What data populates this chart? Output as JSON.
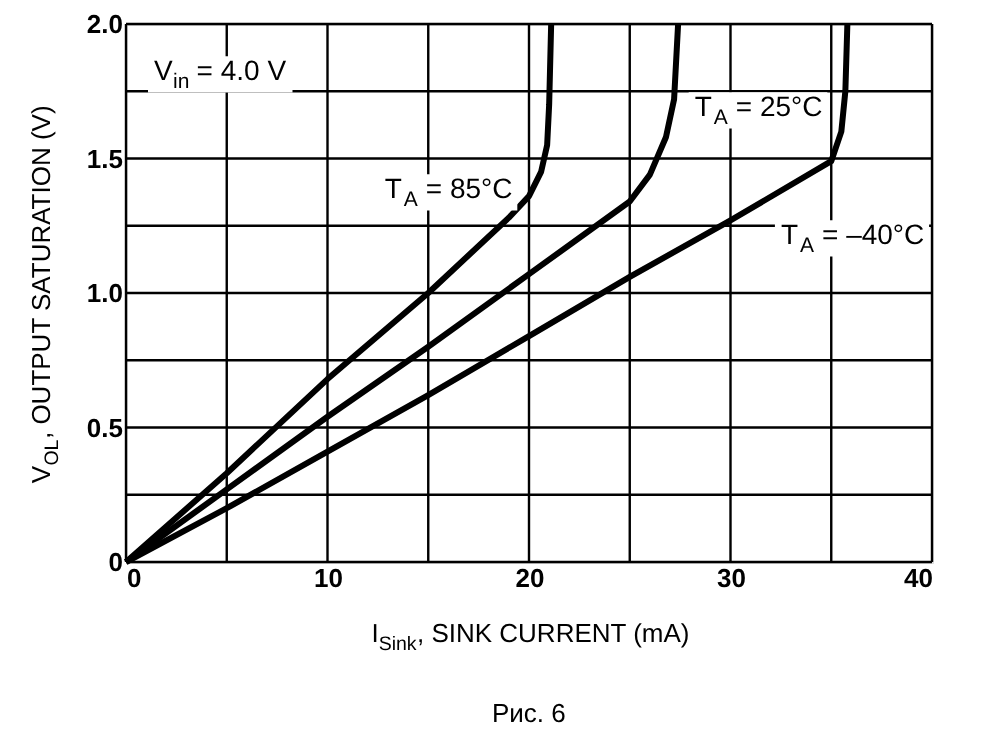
{
  "chart_data": {
    "type": "line",
    "xlabel": "I$_{Sink}$, SINK CURRENT (mA)",
    "ylabel": "V$_{OL}$, OUTPUT SATURATION (V)",
    "xlim": [
      0,
      40
    ],
    "ylim": [
      0,
      2.0
    ],
    "xticks": [
      0,
      {
        "value": 5,
        "label": null
      },
      10,
      {
        "value": 15,
        "label": null
      },
      20,
      {
        "value": 25,
        "label": null
      },
      30,
      {
        "value": 35,
        "label": null
      },
      40
    ],
    "yticks": [
      0,
      {
        "value": 0.25,
        "label": null
      },
      {
        "value": 0.5,
        "label": "0.5"
      },
      {
        "value": 0.75,
        "label": null
      },
      {
        "value": 1.0,
        "label": "1.0"
      },
      {
        "value": 1.25,
        "label": null
      },
      {
        "value": 1.5,
        "label": "1.5"
      },
      {
        "value": 1.75,
        "label": null
      },
      {
        "value": 2.0,
        "label": "2.0"
      }
    ],
    "grid": true,
    "marker": "none",
    "line_style": "solid",
    "series": [
      {
        "color": "#000000",
        "x": [
          0,
          5,
          10,
          15,
          19,
          20,
          20.6,
          20.9,
          21.0,
          21.1
        ],
        "values": [
          0,
          0.33,
          0.68,
          1.0,
          1.28,
          1.36,
          1.45,
          1.55,
          1.7,
          2.0
        ]
      },
      {
        "color": "#000000",
        "x": [
          0,
          5,
          10,
          15,
          20,
          25,
          26,
          26.8,
          27.2,
          27.4
        ],
        "values": [
          0,
          0.27,
          0.54,
          0.8,
          1.07,
          1.34,
          1.44,
          1.58,
          1.72,
          2.0
        ]
      },
      {
        "color": "#000000",
        "x": [
          0,
          5,
          10,
          15,
          20,
          25,
          30,
          35,
          35.5,
          35.7,
          35.8
        ],
        "values": [
          0,
          0.2,
          0.41,
          0.62,
          0.84,
          1.06,
          1.27,
          1.49,
          1.6,
          1.75,
          2.0
        ]
      }
    ],
    "annotations": [
      "V$_{in}$ = 4.0 V",
      "T$_{A}$ = 85°C",
      "T$_{A}$ = 25°C",
      "T$_{A}$ = –40°C",
      "Рис. 6"
    ]
  }
}
